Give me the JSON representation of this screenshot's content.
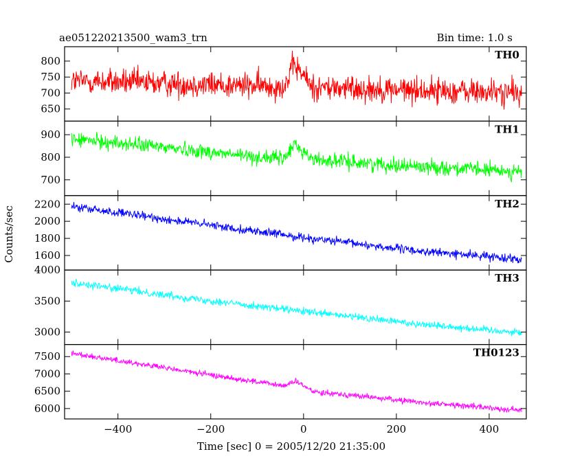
{
  "chart_data": {
    "type": "line",
    "title": "ae051220213500_wam3_trn",
    "subtitle": "Bin time: 1.0 s",
    "xlabel": "Time [sec] 0 = 2005/12/20 21:35:00",
    "ylabel": "Counts/sec",
    "xlim": [
      -515,
      480
    ],
    "x_ticks": [
      -400,
      -200,
      0,
      200,
      400
    ],
    "x_tick_labels": [
      "−400",
      "−200",
      "0",
      "200",
      "400"
    ],
    "x_range": [
      -500,
      470
    ],
    "bin_time_s": 1.0,
    "panels": [
      {
        "name": "TH0",
        "color": "#ff0000",
        "ylim": [
          612,
          845
        ],
        "y_ticks": [
          650,
          700,
          750,
          800
        ],
        "y_tick_labels": [
          "650",
          "700",
          "750",
          "800"
        ],
        "trend": [
          [
            -500,
            738
          ],
          [
            -100,
            722
          ],
          [
            -40,
            722
          ],
          [
            -20,
            790
          ],
          [
            20,
            718
          ],
          [
            470,
            700
          ]
        ],
        "noise": 38
      },
      {
        "name": "TH1",
        "color": "#00ff00",
        "ylim": [
          630,
          960
        ],
        "y_ticks": [
          700,
          800,
          900
        ],
        "y_tick_labels": [
          "700",
          "800",
          "900"
        ],
        "trend": [
          [
            -500,
            880
          ],
          [
            -300,
            845
          ],
          [
            -100,
            800
          ],
          [
            -40,
            795
          ],
          [
            -20,
            860
          ],
          [
            20,
            790
          ],
          [
            200,
            765
          ],
          [
            470,
            735
          ]
        ],
        "noise": 30
      },
      {
        "name": "TH2",
        "color": "#0000ff",
        "ylim": [
          1430,
          2300
        ],
        "y_ticks": [
          1600,
          1800,
          2000,
          2200
        ],
        "y_tick_labels": [
          "1600",
          "1800",
          "2000",
          "2200"
        ],
        "trend": [
          [
            -500,
            2170
          ],
          [
            -250,
            1990
          ],
          [
            0,
            1810
          ],
          [
            250,
            1650
          ],
          [
            470,
            1560
          ]
        ],
        "noise": 45
      },
      {
        "name": "TH3",
        "color": "#00ffff",
        "ylim": [
          2800,
          4000
        ],
        "y_ticks": [
          3000,
          3500,
          4000
        ],
        "y_tick_labels": [
          "3000",
          "3500",
          "4000"
        ],
        "trend": [
          [
            -500,
            3800
          ],
          [
            -250,
            3550
          ],
          [
            0,
            3330
          ],
          [
            250,
            3130
          ],
          [
            470,
            2990
          ]
        ],
        "noise": 55
      },
      {
        "name": "TH0123",
        "color": "#ff00ff",
        "ylim": [
          5700,
          7850
        ],
        "y_ticks": [
          6000,
          6500,
          7000,
          7500
        ],
        "y_tick_labels": [
          "6000",
          "6500",
          "7000",
          "7500"
        ],
        "trend": [
          [
            -500,
            7600
          ],
          [
            -250,
            7070
          ],
          [
            -40,
            6650
          ],
          [
            -20,
            6800
          ],
          [
            20,
            6500
          ],
          [
            250,
            6180
          ],
          [
            470,
            5950
          ]
        ],
        "noise": 75
      }
    ]
  }
}
